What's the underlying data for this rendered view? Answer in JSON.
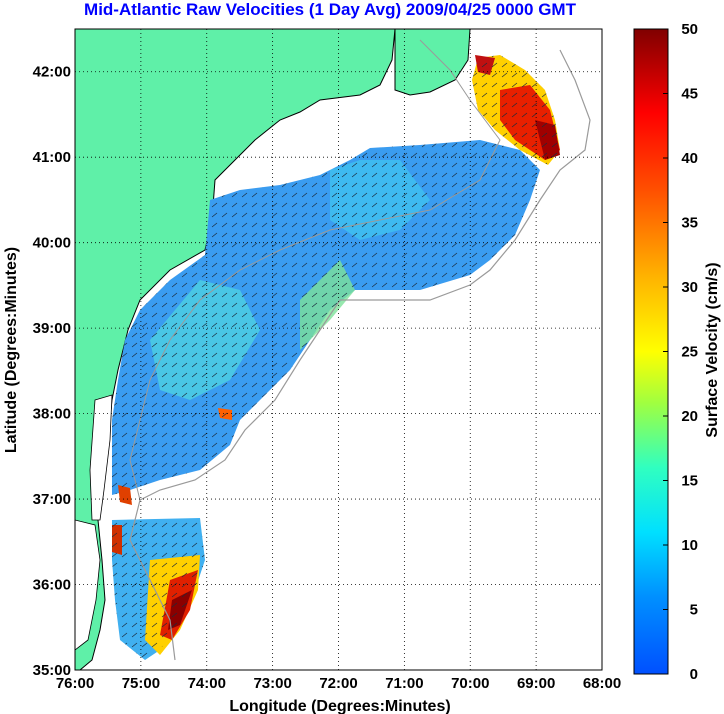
{
  "title": "Mid-Atlantic Raw Velocities (1 Day Avg) 2009/04/25 0000 GMT",
  "map": {
    "x_axis_label": "Longitude (Degrees:Minutes)",
    "y_axis_label": "Latitude (Degrees:Minutes)",
    "x_ticks": [
      "76:00",
      "75:00",
      "74:00",
      "73:00",
      "72:00",
      "71:00",
      "70:00",
      "69:00",
      "68:00"
    ],
    "y_ticks": [
      "35:00",
      "36:00",
      "37:00",
      "38:00",
      "39:00",
      "40:00",
      "41:00",
      "42:00"
    ],
    "x_range_deg_west": [
      76,
      68
    ],
    "y_range_deg_north": [
      35,
      42.5
    ],
    "grid": "dotted",
    "land_color": "#5ff0a8",
    "coastline_color": "#000000",
    "bathymetry_color": "#9a9a9a"
  },
  "colorbar": {
    "label": "Surface Velocity (cm/s)",
    "units": "cm/s",
    "range": [
      0,
      50
    ],
    "ticks": [
      "0",
      "5",
      "10",
      "15",
      "20",
      "25",
      "30",
      "35",
      "40",
      "45",
      "50"
    ],
    "colormap": [
      "#0000ff",
      "#00a0ff",
      "#00ffff",
      "#80ff80",
      "#ffff00",
      "#ff8000",
      "#ff0000",
      "#800000"
    ],
    "placement": "right"
  }
}
